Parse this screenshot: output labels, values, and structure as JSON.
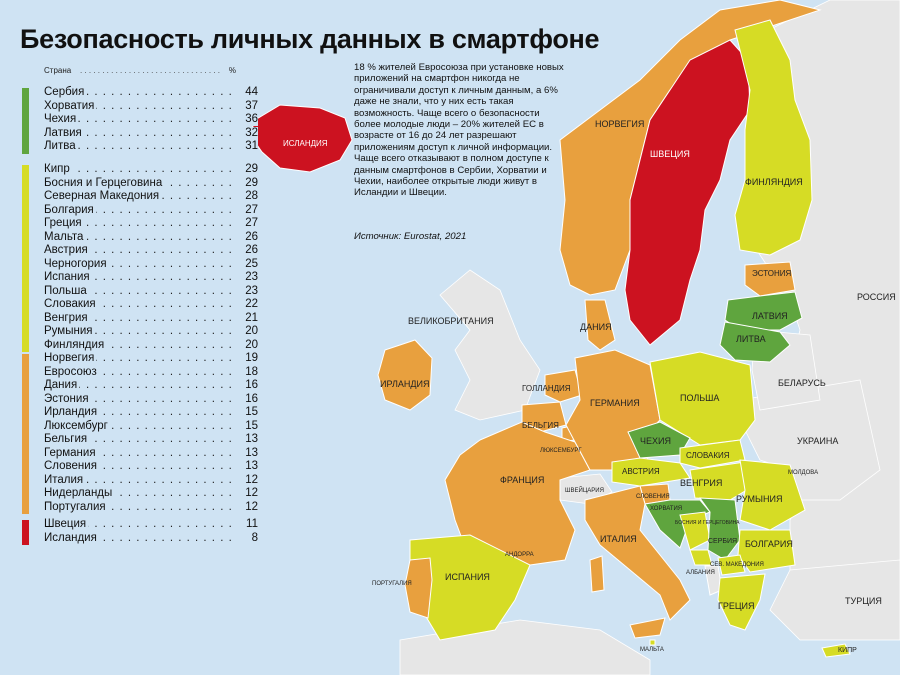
{
  "title": "Безопасность личных данных в смартфоне",
  "legend": {
    "header_country": "Страна",
    "header_unit": "%",
    "groups": [
      {
        "color": "#5fa53e",
        "items": [
          {
            "country": "Сербия",
            "value": "44"
          },
          {
            "country": "Хорватия",
            "value": "37"
          },
          {
            "country": "Чехия",
            "value": "36"
          },
          {
            "country": "Латвия",
            "value": "32"
          },
          {
            "country": "Литва",
            "value": "31"
          }
        ]
      },
      {
        "color": "#d6dc25",
        "items": [
          {
            "country": "Кипр",
            "value": "29"
          },
          {
            "country": "Босния и Герцеговина",
            "value": "29"
          },
          {
            "country": "Северная Македония",
            "value": "28"
          },
          {
            "country": "Болгария",
            "value": "27"
          },
          {
            "country": "Греция",
            "value": "27"
          },
          {
            "country": "Мальта",
            "value": "26"
          },
          {
            "country": "Австрия",
            "value": "26"
          },
          {
            "country": "Черногория",
            "value": "25"
          },
          {
            "country": "Испания",
            "value": "23"
          },
          {
            "country": "Польша",
            "value": "23"
          },
          {
            "country": "Словакия",
            "value": "22"
          },
          {
            "country": "Венгрия",
            "value": "21"
          },
          {
            "country": "Румыния",
            "value": "20"
          },
          {
            "country": "Финляндия",
            "value": "20"
          }
        ]
      },
      {
        "color": "#e8a03e",
        "items": [
          {
            "country": "Норвегия",
            "value": "19"
          },
          {
            "country": "Евросоюз",
            "value": "18"
          },
          {
            "country": "Дания",
            "value": "16"
          },
          {
            "country": "Эстония",
            "value": "16"
          },
          {
            "country": "Ирландия",
            "value": "15"
          },
          {
            "country": "Люксембург",
            "value": "15"
          },
          {
            "country": "Бельгия",
            "value": "13"
          },
          {
            "country": "Германия",
            "value": "13"
          },
          {
            "country": "Словения",
            "value": "13"
          },
          {
            "country": "Италия",
            "value": "12"
          },
          {
            "country": "Нидерланды",
            "value": "12"
          },
          {
            "country": "Португалия",
            "value": "12"
          }
        ]
      },
      {
        "color": "#cc1220",
        "items": [
          {
            "country": "Швеция",
            "value": "11"
          },
          {
            "country": "Исландия",
            "value": "8"
          }
        ]
      }
    ]
  },
  "info": {
    "paragraph1": "18 % жителей Евросоюза при установке новых приложений на смартфон никогда не ограничивали доступ к личным данным, а 6% даже не знали, что у них есть такая возможность. Чаще всего о безопасности более молодые люди – 20% жителей ЕС в возрасте от 16 до 24 лет разрешают приложениям доступ к личной информации.",
    "paragraph2": "Чаще всего отказывают в полном доступе к данным смартфонов в Сербии, Хорватии и Чехии, наиболее открытые люди живут в Исландии и Швеции.",
    "source": "Источник: Eurostat, 2021"
  },
  "map_labels": {
    "iceland": "ИСЛАНДИЯ",
    "norway": "НОРВЕГИЯ",
    "sweden": "ШВЕЦИЯ",
    "finland": "ФИНЛЯНДИЯ",
    "estonia": "ЭСТОНИЯ",
    "latvia": "ЛАТВИЯ",
    "lithuania": "ЛИТВА",
    "russia": "РОССИЯ",
    "belarus": "БЕЛАРУСЬ",
    "ukraine": "УКРАИНА",
    "moldova": "МОЛДОВА",
    "uk": "ВЕЛИКОБРИТАНИЯ",
    "ireland": "ИРЛАНДИЯ",
    "denmark": "ДАНИЯ",
    "netherlands": "ГОЛЛАНДИЯ",
    "belgium": "БЕЛЬГИЯ",
    "luxembourg": "ЛЮКСЕМБУРГ",
    "germany": "ГЕРМАНИЯ",
    "poland": "ПОЛЬША",
    "czechia": "ЧЕХИЯ",
    "slovakia": "СЛОВАКИЯ",
    "austria": "АВСТРИЯ",
    "hungary": "ВЕНГРИЯ",
    "romania": "РУМЫНИЯ",
    "switzerland": "ШВЕЙЦАРИЯ",
    "slovenia": "СЛОВЕНИЯ",
    "croatia": "ХОРВАТИЯ",
    "bosnia": "БОСНИЯ И ГЕРЦЕГОВИНА",
    "serbia": "СЕРБИЯ",
    "bulgaria": "БОЛГАРИЯ",
    "montenegro": "ЧЕРН.",
    "north_macedonia": "СЕВ. МАКЕДОНИЯ",
    "albania": "АЛБАНИЯ",
    "greece": "ГРЕЦИЯ",
    "turkey": "ТУРЦИЯ",
    "cyprus": "КИПР",
    "malta": "МАЛЬТА",
    "italy": "ИТАЛИЯ",
    "france": "ФРАНЦИЯ",
    "spain": "ИСПАНИЯ",
    "portugal": "ПОРТУГАЛИЯ",
    "andorra": "АНДОРРА"
  },
  "colors": {
    "sea": "#cfe3f3",
    "land_other": "#e6e6e6",
    "green": "#5fa53e",
    "yellow": "#d6dc25",
    "orange": "#e8a03e",
    "red": "#cc1220"
  }
}
